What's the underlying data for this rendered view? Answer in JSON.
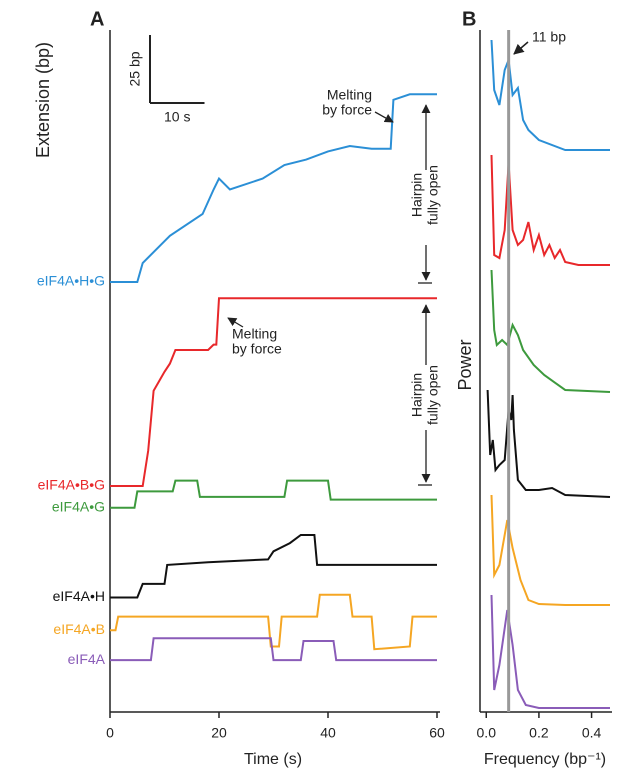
{
  "chart_data": [
    {
      "type": "line",
      "panel": "A",
      "ylabel": "Extension (bp)",
      "xlabel": "Time (s)",
      "xlim": [
        0,
        60
      ],
      "xticks": [
        0,
        20,
        40,
        60
      ],
      "ylim": [
        0,
        250
      ],
      "scalebar": {
        "y_label": "25 bp",
        "y_value": 25,
        "x_label": "10 s",
        "x_value": 10
      },
      "annotations": [
        [
          "Melting",
          "by force"
        ],
        [
          "Melting",
          "by force"
        ],
        [
          "Hairpin",
          "fully open"
        ],
        [
          "Hairpin",
          "fully open"
        ]
      ],
      "series": [
        {
          "name": "eIF4A•H•G",
          "color": "#2b8fd6",
          "x": [
            0,
            5,
            6,
            10,
            11,
            17,
            19,
            20,
            22,
            28,
            32,
            36,
            40,
            44,
            48,
            51.5,
            52,
            55,
            60
          ],
          "values": [
            150,
            150,
            157,
            165,
            167,
            175,
            184,
            188,
            184,
            188,
            193,
            195,
            198,
            200,
            199,
            199,
            217,
            219,
            219
          ]
        },
        {
          "name": "eIF4A•B•G",
          "color": "#e8282b",
          "x": [
            0,
            6,
            7,
            8,
            10,
            11,
            12,
            18,
            19,
            19.5,
            20,
            30,
            40,
            50,
            60
          ],
          "values": [
            75,
            75,
            88,
            110,
            117,
            120,
            125,
            125,
            127,
            127,
            144,
            144,
            144,
            144,
            144
          ]
        },
        {
          "name": "eIF4A•G",
          "color": "#3d9a3d",
          "x": [
            0,
            4.5,
            5,
            11.5,
            12,
            16,
            16.5,
            32,
            32.5,
            40,
            40.5,
            60
          ],
          "values": [
            67,
            67,
            73,
            73,
            77,
            77,
            71,
            71,
            77,
            77,
            70,
            70
          ]
        },
        {
          "name": "eIF4A•H",
          "color": "#111111",
          "x": [
            0,
            5,
            6,
            10,
            10.5,
            18,
            29,
            30,
            33,
            35,
            37.5,
            38,
            60
          ],
          "values": [
            34,
            34,
            39,
            39,
            46,
            47,
            48,
            51,
            54,
            57,
            57,
            46,
            46
          ]
        },
        {
          "name": "eIF4A•B",
          "color": "#f5a623",
          "x": [
            0,
            1,
            1.5,
            29,
            29.5,
            31,
            31.5,
            38,
            38.5,
            44,
            44.5,
            48,
            48.5,
            55,
            55.5,
            60
          ],
          "values": [
            22,
            22,
            27,
            27,
            16,
            16,
            27,
            27,
            35,
            35,
            27,
            27,
            15,
            16,
            27,
            27
          ]
        },
        {
          "name": "eIF4A",
          "color": "#8a5cb8",
          "x": [
            0,
            7.5,
            8,
            29.5,
            30,
            35,
            35.5,
            41,
            41.5,
            60
          ],
          "values": [
            11,
            11,
            19,
            19,
            11,
            11,
            18,
            18,
            11,
            11
          ]
        }
      ]
    },
    {
      "type": "line",
      "panel": "B",
      "ylabel": "Power",
      "xlabel": "Frequency (bp⁻¹)",
      "xlim": [
        -0.02,
        0.47
      ],
      "ylim": [
        0,
        692
      ],
      "xticks": [
        {
          "value": 0,
          "label": "0.0"
        },
        {
          "value": 0.2,
          "label": "0.2"
        },
        {
          "value": 0.4,
          "label": "0.4"
        }
      ],
      "marker_x": 0.085,
      "marker_color": "#999999",
      "marker_label": "11 bp",
      "series": [
        {
          "color": "#2b8fd6",
          "x": [
            0.02,
            0.03,
            0.05,
            0.07,
            0.085,
            0.1,
            0.12,
            0.14,
            0.16,
            0.2,
            0.3,
            0.47
          ],
          "values": [
            672,
            622,
            607,
            642,
            652,
            617,
            624,
            592,
            582,
            572,
            562,
            562
          ]
        },
        {
          "color": "#e8282b",
          "x": [
            0.02,
            0.03,
            0.05,
            0.07,
            0.085,
            0.1,
            0.12,
            0.14,
            0.16,
            0.18,
            0.2,
            0.22,
            0.24,
            0.26,
            0.28,
            0.3,
            0.35,
            0.47
          ],
          "values": [
            557,
            457,
            454,
            482,
            549,
            482,
            467,
            472,
            490,
            462,
            477,
            457,
            467,
            454,
            462,
            450,
            447,
            447
          ]
        },
        {
          "color": "#3d9a3d",
          "x": [
            0.02,
            0.03,
            0.04,
            0.06,
            0.08,
            0.1,
            0.12,
            0.14,
            0.18,
            0.22,
            0.3,
            0.47
          ],
          "values": [
            442,
            382,
            367,
            372,
            367,
            387,
            377,
            362,
            347,
            337,
            322,
            320
          ]
        },
        {
          "color": "#111111",
          "x": [
            0.005,
            0.015,
            0.025,
            0.035,
            0.05,
            0.07,
            0.085,
            0.095,
            0.1,
            0.105,
            0.12,
            0.15,
            0.2,
            0.25,
            0.3,
            0.47
          ],
          "values": [
            322,
            257,
            272,
            242,
            247,
            252,
            302,
            292,
            317,
            282,
            232,
            222,
            222,
            224,
            217,
            215
          ]
        },
        {
          "color": "#f5a623",
          "x": [
            0.02,
            0.03,
            0.05,
            0.08,
            0.1,
            0.13,
            0.16,
            0.2,
            0.3,
            0.47
          ],
          "values": [
            217,
            137,
            147,
            192,
            164,
            132,
            112,
            108,
            107,
            107
          ]
        },
        {
          "color": "#8a5cb8",
          "x": [
            0.02,
            0.03,
            0.05,
            0.08,
            0.1,
            0.12,
            0.15,
            0.2,
            0.3,
            0.47
          ],
          "values": [
            117,
            22,
            47,
            102,
            67,
            22,
            7,
            4,
            4,
            4
          ]
        }
      ]
    }
  ]
}
